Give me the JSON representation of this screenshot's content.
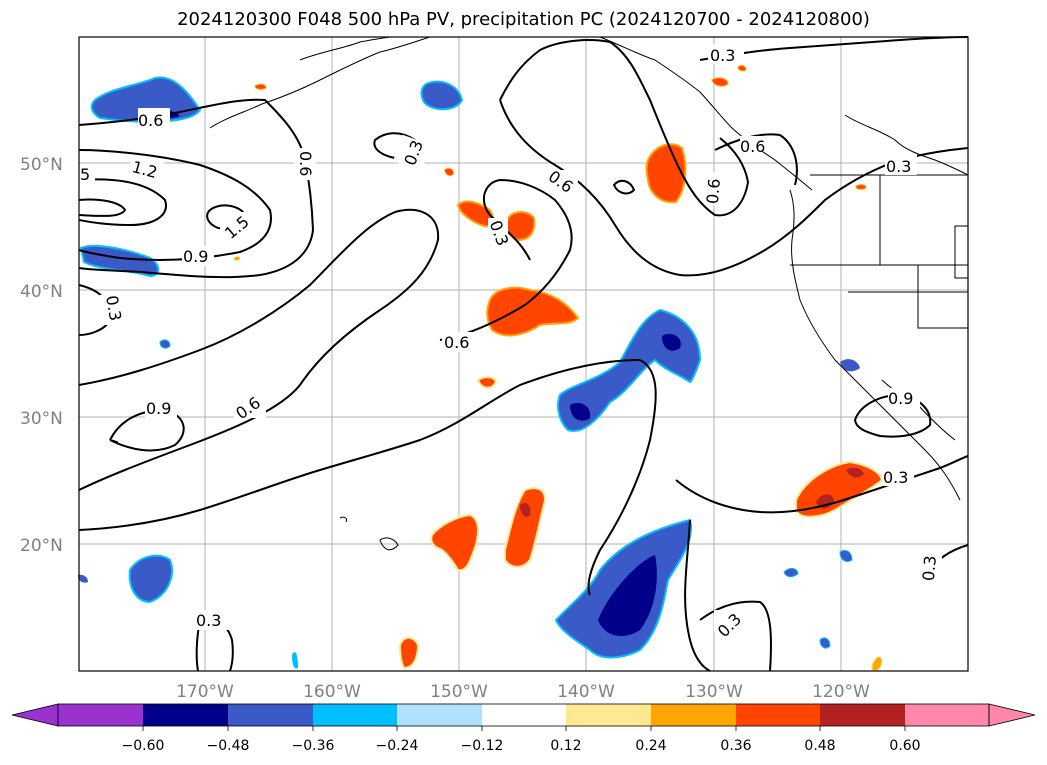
{
  "title": "2024120300 F048 500 hPa PV, precipitation PC (2024120700 - 2024120800)",
  "map": {
    "lat_labels": [
      "50°N",
      "40°N",
      "30°N",
      "20°N"
    ],
    "lon_labels": [
      "170°W",
      "160°W",
      "150°W",
      "140°W",
      "130°W",
      "120°W"
    ],
    "contour_labels": [
      "0.3",
      "0.3",
      "0.3",
      "0.3",
      "0.3",
      "0.3",
      "0.3",
      "0.6",
      "0.6",
      "0.6",
      "0.6",
      "0.6",
      "0.6",
      "0.9",
      "0.9",
      "0.9",
      "1.2",
      "1.5",
      "5",
      "0.6",
      "0.3",
      "0.3"
    ]
  },
  "colorbar": {
    "ticks": [
      "−0.60",
      "−0.48",
      "−0.36",
      "−0.24",
      "−0.12",
      "0.12",
      "0.24",
      "0.36",
      "0.48",
      "0.60"
    ],
    "colors": [
      "#9a32cd",
      "#00008b",
      "#3a5bc7",
      "#00bfff",
      "#b0e2ff",
      "#ffffff",
      "#ffe88f",
      "#ffa500",
      "#ff4500",
      "#b22222",
      "#ff88aa"
    ]
  }
}
